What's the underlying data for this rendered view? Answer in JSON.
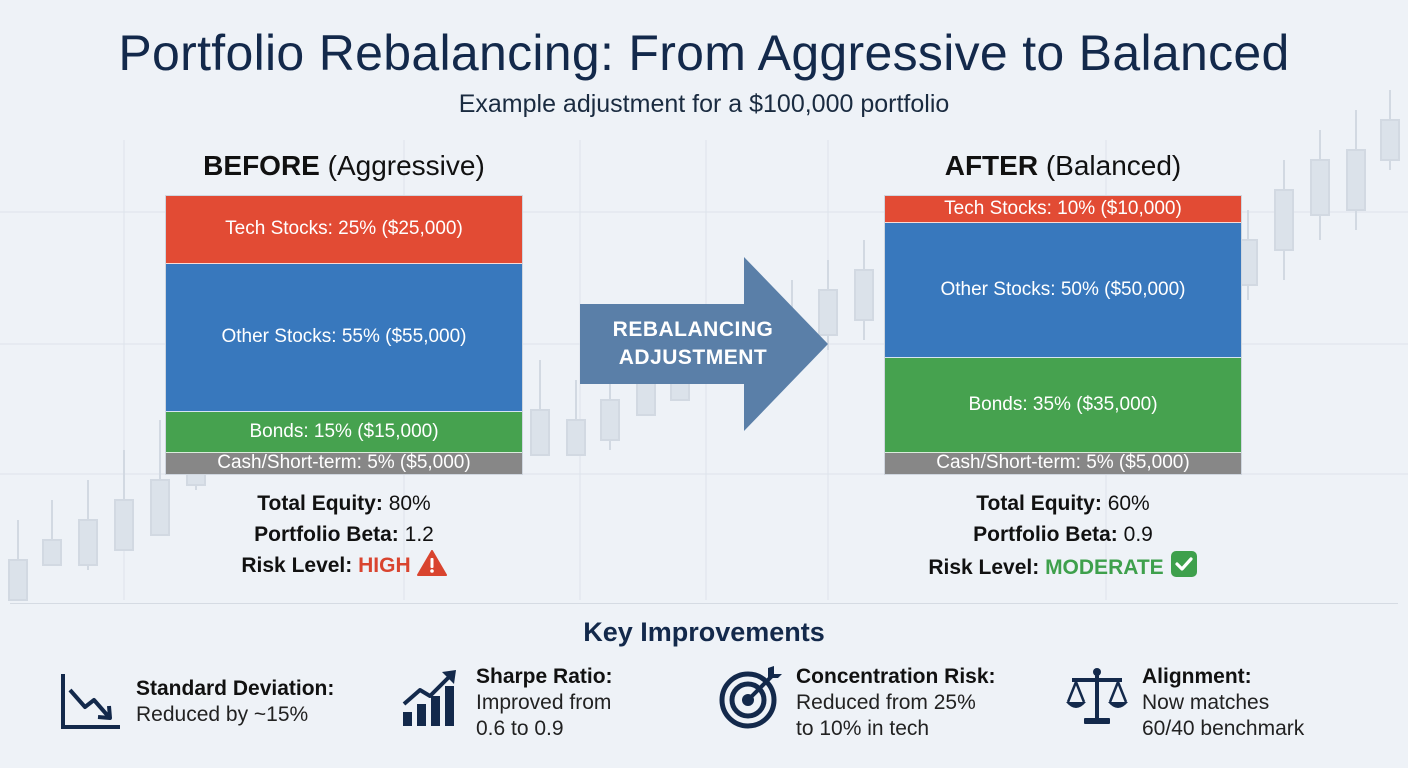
{
  "title": "Portfolio Rebalancing: From Aggressive to Balanced",
  "subtitle": "Example adjustment for a $100,000 portfolio",
  "before": {
    "heading_bold": "BEFORE",
    "heading_rest": "(Aggressive)",
    "segments": [
      {
        "label": "Tech Stocks: 25% ($25,000)",
        "percent": 25,
        "color": "#e24b34"
      },
      {
        "label": "Other Stocks: 55% ($55,000)",
        "percent": 55,
        "color": "#3878bd"
      },
      {
        "label": "Bonds: 15% ($15,000)",
        "percent": 15,
        "color": "#46a24f"
      },
      {
        "label": "Cash/Short-term: 5% ($5,000)",
        "percent": 5,
        "color": "#878787"
      }
    ],
    "equity_label": "Total Equity:",
    "equity_value": "80%",
    "beta_label": "Portfolio Beta:",
    "beta_value": "1.2",
    "risk_label": "Risk Level:",
    "risk_value": "HIGH",
    "risk_icon": "warning-icon"
  },
  "arrow": {
    "line1": "REBALANCING",
    "line2": "ADJUSTMENT",
    "color": "#5a7fa8"
  },
  "after": {
    "heading_bold": "AFTER",
    "heading_rest": "(Balanced)",
    "segments": [
      {
        "label": "Tech Stocks: 10% ($10,000)",
        "percent": 10,
        "color": "#e24b34"
      },
      {
        "label": "Other Stocks: 50% ($50,000)",
        "percent": 50,
        "color": "#3878bd"
      },
      {
        "label": "Bonds: 35% ($35,000)",
        "percent": 35,
        "color": "#46a24f"
      },
      {
        "label": "Cash/Short-term: 5% ($5,000)",
        "percent": 5,
        "color": "#878787"
      }
    ],
    "equity_label": "Total Equity:",
    "equity_value": "60%",
    "beta_label": "Portfolio Beta:",
    "beta_value": "0.9",
    "risk_label": "Risk Level:",
    "risk_value": "MODERATE",
    "risk_icon": "checkmark-icon"
  },
  "key_improvements": {
    "title": "Key Improvements",
    "items": [
      {
        "icon": "downtrend-chart-icon",
        "title": "Standard Deviation:",
        "line1": "Reduced by ~15%",
        "line2": ""
      },
      {
        "icon": "growth-bar-chart-icon",
        "title": "Sharpe Ratio:",
        "line1": "Improved from",
        "line2": "0.6 to 0.9"
      },
      {
        "icon": "target-icon",
        "title": "Concentration Risk:",
        "line1": "Reduced from 25%",
        "line2": "to 10% in tech"
      },
      {
        "icon": "balance-scale-icon",
        "title": "Alignment:",
        "line1": "Now matches",
        "line2": "60/40 benchmark"
      }
    ]
  }
}
